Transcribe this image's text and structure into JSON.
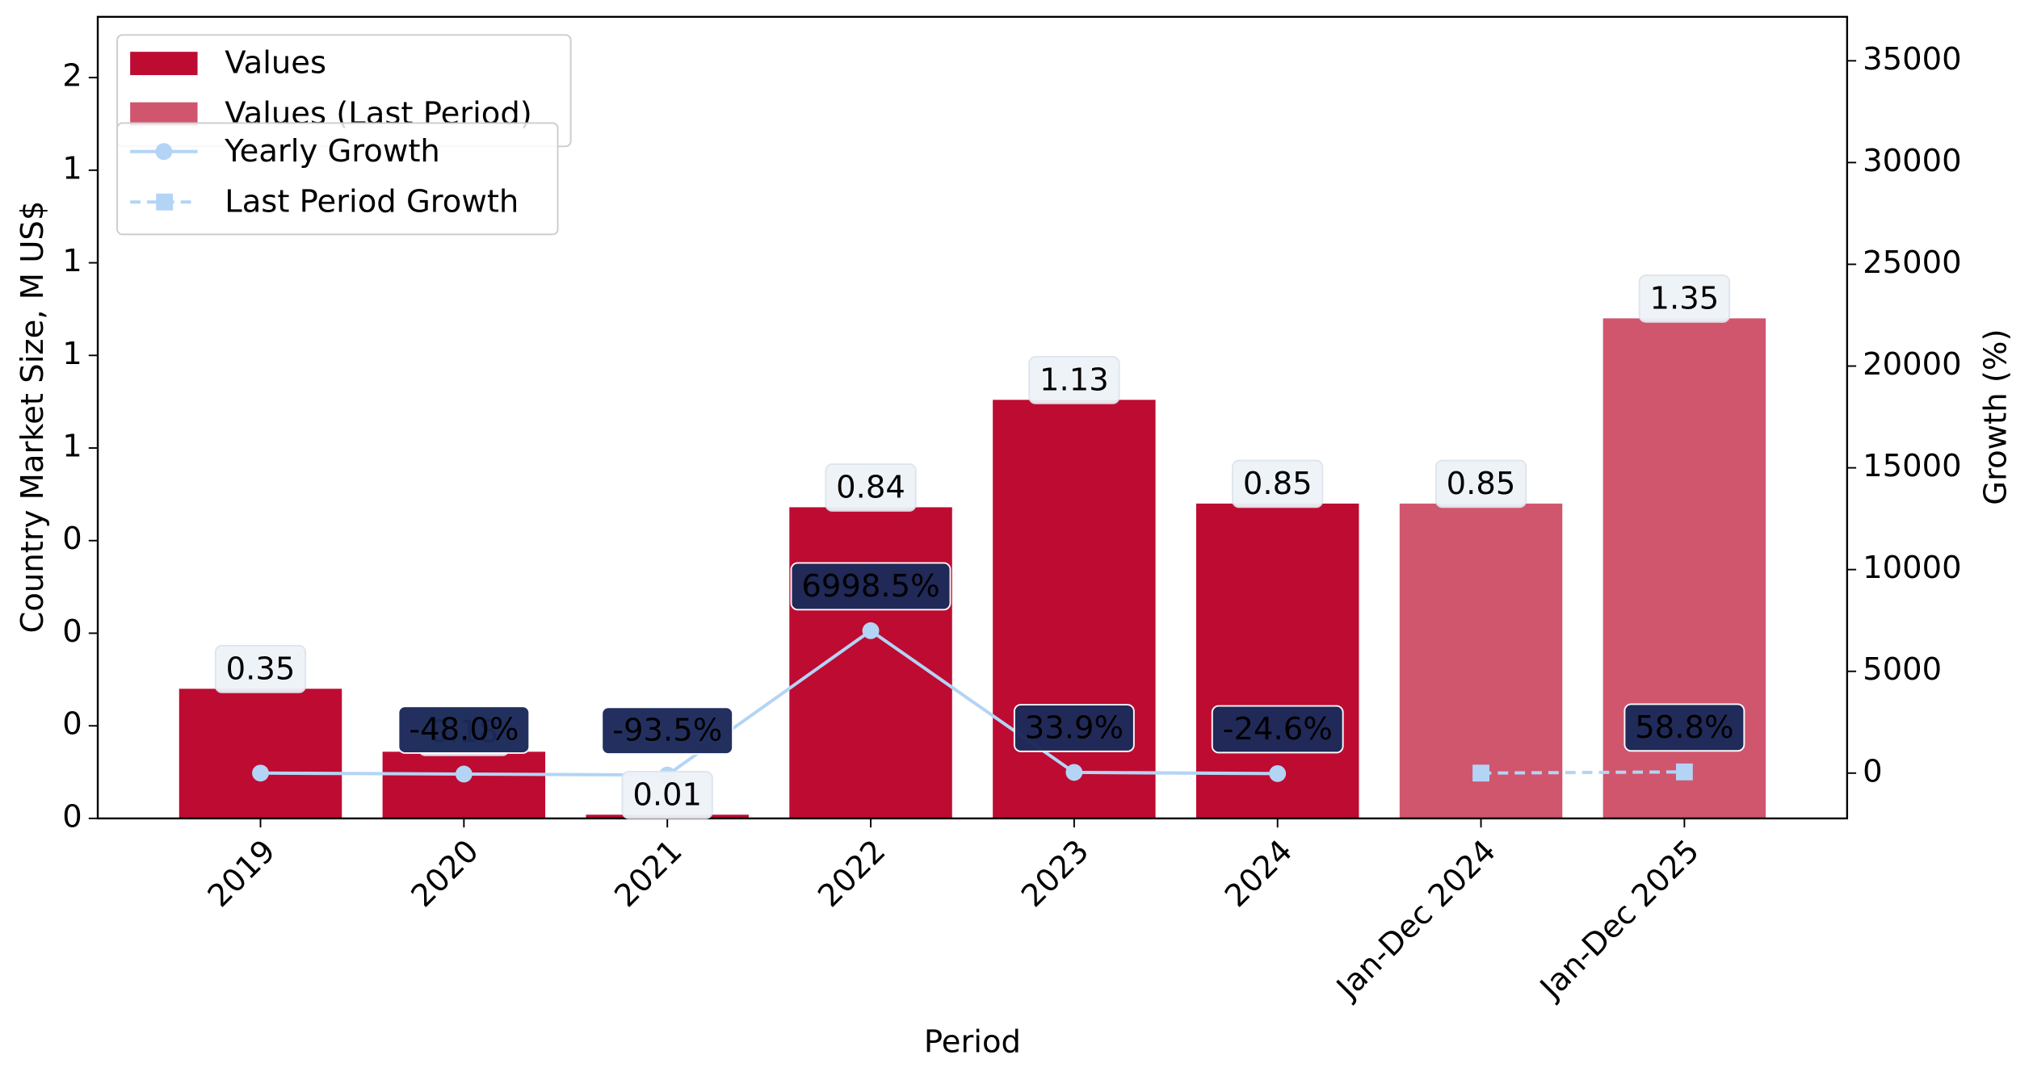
{
  "chart_data": {
    "type": "bar",
    "x_label": "Period",
    "y_label": "Country Market Size, M US$",
    "y2_label": "Growth (%)",
    "categories": [
      "2019",
      "2020",
      "2021",
      "2022",
      "2023",
      "2024",
      "Jan-Dec 2024",
      "Jan-Dec 2025"
    ],
    "xlim": [
      -0.8,
      7.8
    ],
    "ylim": [
      0,
      2.164
    ],
    "yticks": [
      {
        "value": 0,
        "label": "0"
      },
      {
        "value": 0.25,
        "label": "0"
      },
      {
        "value": 0.5,
        "label": "0"
      },
      {
        "value": 0.75,
        "label": "0"
      },
      {
        "value": 1.0,
        "label": "1"
      },
      {
        "value": 1.25,
        "label": "1"
      },
      {
        "value": 1.5,
        "label": "1"
      },
      {
        "value": 1.75,
        "label": "1"
      },
      {
        "value": 2.0,
        "label": "2"
      }
    ],
    "y2lim": [
      -2227,
      37160
    ],
    "y2ticks": [
      0,
      5000,
      10000,
      15000,
      20000,
      25000,
      30000,
      35000
    ],
    "y_label_color": "#0000dd",
    "y2_label_color": "#ee0000",
    "series": [
      {
        "name": "Values",
        "type": "bar",
        "color": "#be0b32",
        "values": [
          0.35,
          0.18,
          0.01,
          0.84,
          1.13,
          0.85,
          null,
          null
        ]
      },
      {
        "name": "Values (Last Period)",
        "type": "bar",
        "color": "#d0566d",
        "values": [
          null,
          null,
          null,
          null,
          null,
          null,
          0.85,
          1.35
        ]
      },
      {
        "name": "Yearly Growth",
        "type": "line",
        "axis": "y2",
        "color": "#b3d4f5",
        "marker": "circle",
        "dash": false,
        "values": [
          0,
          -48.0,
          -93.5,
          6998.5,
          33.9,
          -24.6,
          null,
          null
        ],
        "value_labels": [
          null,
          "-48.0%",
          "-93.5%",
          "6998.5%",
          "33.9%",
          "-24.6%",
          null,
          null
        ]
      },
      {
        "name": "Last Period Growth",
        "type": "line",
        "axis": "y2",
        "color": "#b3d4f5",
        "marker": "square",
        "dash": true,
        "values": [
          null,
          null,
          null,
          null,
          null,
          null,
          0,
          58.8
        ],
        "value_labels": [
          null,
          null,
          null,
          null,
          null,
          null,
          null,
          "58.8%"
        ]
      }
    ]
  }
}
